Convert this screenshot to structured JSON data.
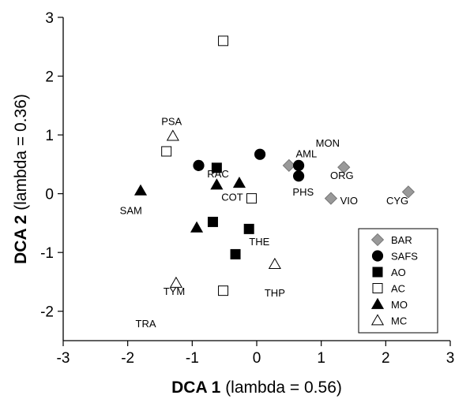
{
  "chart_data": {
    "type": "scatter",
    "title": "",
    "xlabel_bold": "DCA 1",
    "xlabel_rest": " (lambda = 0.56)",
    "ylabel_bold": "DCA 2",
    "ylabel_rest": " (lambda = 0.36)",
    "xlim": [
      -3,
      3
    ],
    "ylim": [
      -2.5,
      3
    ],
    "xticks": [
      -3,
      -2,
      -1,
      0,
      1,
      2,
      3
    ],
    "yticks": [
      -2,
      -1,
      0,
      1,
      2,
      3
    ],
    "grid": false,
    "legend_position": "bottom-right",
    "series": [
      {
        "name": "BAR",
        "marker": "diamond",
        "fill": "#999999",
        "stroke": "#777777",
        "points": [
          [
            0.5,
            0.48
          ],
          [
            1.35,
            0.45
          ],
          [
            1.15,
            -0.08
          ],
          [
            2.35,
            0.03
          ]
        ]
      },
      {
        "name": "SAFS",
        "marker": "circle",
        "fill": "#000000",
        "stroke": "#000000",
        "points": [
          [
            -0.9,
            0.48
          ],
          [
            0.05,
            0.67
          ],
          [
            0.65,
            0.48
          ],
          [
            0.65,
            0.3
          ]
        ]
      },
      {
        "name": "AO",
        "marker": "square",
        "fill": "#000000",
        "stroke": "#000000",
        "points": [
          [
            -0.62,
            0.44
          ],
          [
            -0.68,
            -0.48
          ],
          [
            -0.12,
            -0.6
          ],
          [
            -0.33,
            -1.03
          ]
        ]
      },
      {
        "name": "AC",
        "marker": "square",
        "fill": "#ffffff",
        "stroke": "#000000",
        "points": [
          [
            -0.52,
            2.6
          ],
          [
            -1.4,
            0.72
          ],
          [
            -0.08,
            -0.08
          ],
          [
            -0.52,
            -1.65
          ]
        ]
      },
      {
        "name": "MO",
        "marker": "triangle",
        "fill": "#000000",
        "stroke": "#000000",
        "points": [
          [
            -1.8,
            0.05
          ],
          [
            -0.62,
            0.15
          ],
          [
            -0.27,
            0.18
          ],
          [
            -0.93,
            -0.58
          ]
        ]
      },
      {
        "name": "MC",
        "marker": "triangle",
        "fill": "#ffffff",
        "stroke": "#000000",
        "points": [
          [
            -1.3,
            0.98
          ],
          [
            0.28,
            -1.2
          ],
          [
            -1.25,
            -1.52
          ]
        ]
      }
    ],
    "annotations": [
      {
        "text": "PSA",
        "x": -1.32,
        "y": 1.17
      },
      {
        "text": "AML",
        "x": 0.77,
        "y": 0.62
      },
      {
        "text": "MON",
        "x": 1.1,
        "y": 0.8
      },
      {
        "text": "RAC",
        "x": -0.6,
        "y": 0.28
      },
      {
        "text": "ORG",
        "x": 1.32,
        "y": 0.25
      },
      {
        "text": "PHS",
        "x": 0.72,
        "y": -0.03
      },
      {
        "text": "COT",
        "x": -0.38,
        "y": -0.12
      },
      {
        "text": "VIO",
        "x": 1.43,
        "y": -0.18
      },
      {
        "text": "CYG",
        "x": 2.18,
        "y": -0.18
      },
      {
        "text": "SAM",
        "x": -1.95,
        "y": -0.35
      },
      {
        "text": "THE",
        "x": 0.04,
        "y": -0.88
      },
      {
        "text": "THP",
        "x": 0.28,
        "y": -1.75
      },
      {
        "text": "TYM",
        "x": -1.28,
        "y": -1.72
      },
      {
        "text": "TRA",
        "x": -1.72,
        "y": -2.27
      }
    ]
  }
}
